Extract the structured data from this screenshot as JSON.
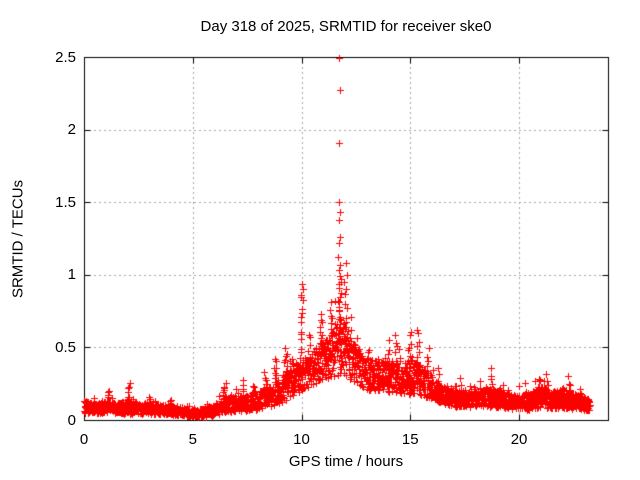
{
  "page": {
    "background": "#ffffff"
  },
  "chart_data": {
    "type": "scatter",
    "title": "Day 318 of 2025, SRMTID for receiver ske0",
    "xlabel": "GPS time / hours",
    "ylabel": "SRMTID / TECUs",
    "marker": "plus",
    "marker_color": "#ff0000",
    "axis_color": "#000000",
    "grid": true,
    "grid_color": "#a8a8a8",
    "legend": "none",
    "xlim": [
      0,
      24.09
    ],
    "ylim": [
      0,
      2.5
    ],
    "x_ticks": [
      0,
      5,
      10,
      15,
      20
    ],
    "x_tick_labels": [
      "0",
      "5",
      "10",
      "15",
      "20"
    ],
    "y_ticks": [
      0,
      0.5,
      1,
      1.5,
      2,
      2.5
    ],
    "y_tick_labels": [
      "0",
      "0.5",
      "1",
      "1.5",
      "2",
      "2.5"
    ],
    "x_grid_at": [
      5,
      10,
      15,
      20
    ],
    "y_grid_at": [
      0.5,
      1,
      1.5,
      2
    ],
    "x_data_range": [
      0,
      23.25
    ],
    "baseline_count": 2550,
    "seed": 318,
    "envelope_note": "control points [hour, band_center_TECU, band_halfspread_TECU] of dense scatter band",
    "envelope": [
      [
        0,
        0.09,
        0.045
      ],
      [
        0.5,
        0.08,
        0.035
      ],
      [
        1,
        0.09,
        0.045
      ],
      [
        1.5,
        0.08,
        0.035
      ],
      [
        2,
        0.09,
        0.05
      ],
      [
        2.5,
        0.075,
        0.035
      ],
      [
        3,
        0.08,
        0.04
      ],
      [
        3.5,
        0.07,
        0.035
      ],
      [
        4,
        0.07,
        0.035
      ],
      [
        4.5,
        0.06,
        0.03
      ],
      [
        5,
        0.045,
        0.025
      ],
      [
        5.5,
        0.05,
        0.03
      ],
      [
        6,
        0.07,
        0.04
      ],
      [
        6.5,
        0.11,
        0.055
      ],
      [
        7,
        0.11,
        0.05
      ],
      [
        7.5,
        0.12,
        0.055
      ],
      [
        8,
        0.13,
        0.06
      ],
      [
        8.5,
        0.16,
        0.07
      ],
      [
        9,
        0.2,
        0.09
      ],
      [
        9.5,
        0.26,
        0.1
      ],
      [
        10,
        0.32,
        0.12
      ],
      [
        10.5,
        0.36,
        0.12
      ],
      [
        11,
        0.4,
        0.13
      ],
      [
        11.5,
        0.46,
        0.16
      ],
      [
        11.8,
        0.52,
        0.2
      ],
      [
        12,
        0.48,
        0.18
      ],
      [
        12.5,
        0.38,
        0.13
      ],
      [
        13,
        0.32,
        0.11
      ],
      [
        13.5,
        0.3,
        0.1
      ],
      [
        14,
        0.3,
        0.11
      ],
      [
        14.5,
        0.28,
        0.1
      ],
      [
        15,
        0.3,
        0.12
      ],
      [
        15.5,
        0.28,
        0.11
      ],
      [
        16,
        0.22,
        0.08
      ],
      [
        16.5,
        0.17,
        0.06
      ],
      [
        17,
        0.15,
        0.06
      ],
      [
        17.5,
        0.14,
        0.05
      ],
      [
        18,
        0.15,
        0.06
      ],
      [
        18.5,
        0.16,
        0.07
      ],
      [
        19,
        0.15,
        0.06
      ],
      [
        19.5,
        0.13,
        0.05
      ],
      [
        20,
        0.12,
        0.05
      ],
      [
        20.5,
        0.13,
        0.06
      ],
      [
        21,
        0.16,
        0.07
      ],
      [
        21.5,
        0.14,
        0.06
      ],
      [
        22,
        0.15,
        0.07
      ],
      [
        22.5,
        0.13,
        0.055
      ],
      [
        23,
        0.11,
        0.045
      ],
      [
        23.25,
        0.1,
        0.04
      ]
    ],
    "bursts_note": "vertical spires [hour, halfwidth_h, top_TECU, n_points]",
    "bursts": [
      [
        1.15,
        0.05,
        0.22,
        6
      ],
      [
        2.05,
        0.06,
        0.27,
        8
      ],
      [
        3.0,
        0.05,
        0.17,
        5
      ],
      [
        3.9,
        0.05,
        0.15,
        4
      ],
      [
        6.45,
        0.08,
        0.26,
        8
      ],
      [
        7.3,
        0.06,
        0.28,
        8
      ],
      [
        7.75,
        0.05,
        0.24,
        5
      ],
      [
        8.3,
        0.06,
        0.33,
        7
      ],
      [
        8.8,
        0.05,
        0.45,
        7
      ],
      [
        9.3,
        0.06,
        0.52,
        9
      ],
      [
        9.6,
        0.05,
        0.45,
        6
      ],
      [
        10.0,
        0.06,
        0.88,
        14
      ],
      [
        10.35,
        0.05,
        0.62,
        7
      ],
      [
        10.9,
        0.06,
        0.75,
        10
      ],
      [
        11.35,
        0.05,
        0.82,
        10
      ],
      [
        11.75,
        0.07,
        0.98,
        20
      ],
      [
        12.05,
        0.06,
        0.92,
        10
      ],
      [
        12.5,
        0.05,
        0.58,
        7
      ],
      [
        13.1,
        0.05,
        0.5,
        6
      ],
      [
        13.55,
        0.05,
        0.45,
        5
      ],
      [
        14.0,
        0.06,
        0.55,
        7
      ],
      [
        14.35,
        0.06,
        0.6,
        8
      ],
      [
        15.0,
        0.06,
        0.62,
        9
      ],
      [
        15.35,
        0.06,
        0.64,
        9
      ],
      [
        15.8,
        0.05,
        0.5,
        7
      ],
      [
        16.3,
        0.05,
        0.36,
        5
      ],
      [
        17.3,
        0.05,
        0.3,
        5
      ],
      [
        18.2,
        0.05,
        0.3,
        5
      ],
      [
        18.7,
        0.05,
        0.36,
        6
      ],
      [
        19.3,
        0.04,
        0.25,
        4
      ],
      [
        20.3,
        0.05,
        0.26,
        4
      ],
      [
        20.9,
        0.05,
        0.3,
        6
      ],
      [
        21.3,
        0.05,
        0.32,
        5
      ],
      [
        22.3,
        0.05,
        0.3,
        6
      ],
      [
        22.8,
        0.04,
        0.24,
        4
      ]
    ],
    "outliers_note": "individually visible high points [hour, TECU] of the ~11.7h spike",
    "outliers": [
      [
        11.72,
        2.49
      ],
      [
        11.75,
        2.27
      ],
      [
        11.74,
        1.91
      ],
      [
        11.73,
        1.5
      ],
      [
        11.76,
        1.43
      ],
      [
        11.71,
        1.38
      ],
      [
        11.78,
        1.26
      ],
      [
        11.74,
        1.22
      ],
      [
        11.7,
        1.12
      ],
      [
        11.77,
        1.07
      ],
      [
        11.73,
        1.03
      ],
      [
        11.79,
        0.99
      ],
      [
        12.03,
        1.08
      ],
      [
        12.07,
        1.0
      ],
      [
        11.97,
        0.95
      ],
      [
        10.02,
        0.94
      ],
      [
        10.05,
        0.9
      ],
      [
        9.98,
        0.85
      ]
    ]
  }
}
